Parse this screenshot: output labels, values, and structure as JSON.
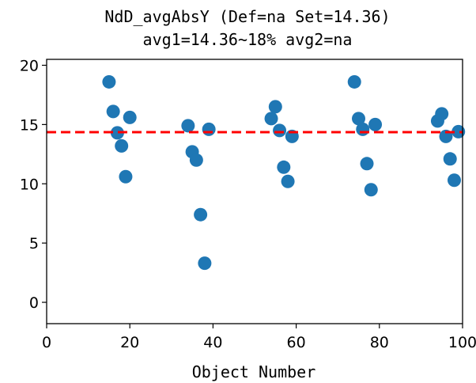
{
  "chart_data": {
    "type": "scatter",
    "title": "NdD_avgAbsY (Def=na Set=14.36)",
    "subtitle": "avg1=14.36~18% avg2=na",
    "xlabel": "Object Number",
    "ylabel": "",
    "xlim": [
      0,
      100
    ],
    "ylim": [
      -1.8,
      20.5
    ],
    "xticks": [
      "0",
      "20",
      "40",
      "60",
      "80",
      "100"
    ],
    "yticks": [
      "0",
      "5",
      "10",
      "15",
      "20"
    ],
    "grid": false,
    "reference_line": {
      "y": 14.36,
      "color": "#ff0000",
      "style": "dashed"
    },
    "point_color": "#1f77b4",
    "points": [
      {
        "x": 15,
        "y": 18.6
      },
      {
        "x": 16,
        "y": 16.1
      },
      {
        "x": 17,
        "y": 14.3
      },
      {
        "x": 18,
        "y": 13.2
      },
      {
        "x": 19,
        "y": 10.6
      },
      {
        "x": 20,
        "y": 15.6
      },
      {
        "x": 34,
        "y": 14.9
      },
      {
        "x": 35,
        "y": 12.7
      },
      {
        "x": 36,
        "y": 12.0
      },
      {
        "x": 37,
        "y": 7.4
      },
      {
        "x": 38,
        "y": 3.3
      },
      {
        "x": 39,
        "y": 14.6
      },
      {
        "x": 54,
        "y": 15.5
      },
      {
        "x": 55,
        "y": 16.5
      },
      {
        "x": 56,
        "y": 14.5
      },
      {
        "x": 57,
        "y": 11.4
      },
      {
        "x": 58,
        "y": 10.2
      },
      {
        "x": 59,
        "y": 14.0
      },
      {
        "x": 74,
        "y": 18.6
      },
      {
        "x": 75,
        "y": 15.5
      },
      {
        "x": 76,
        "y": 14.6
      },
      {
        "x": 77,
        "y": 11.7
      },
      {
        "x": 78,
        "y": 9.5
      },
      {
        "x": 79,
        "y": 15.0
      },
      {
        "x": 94,
        "y": 15.3
      },
      {
        "x": 95,
        "y": 15.9
      },
      {
        "x": 96,
        "y": 14.0
      },
      {
        "x": 97,
        "y": 12.1
      },
      {
        "x": 98,
        "y": 10.3
      },
      {
        "x": 99,
        "y": 14.4
      }
    ]
  }
}
